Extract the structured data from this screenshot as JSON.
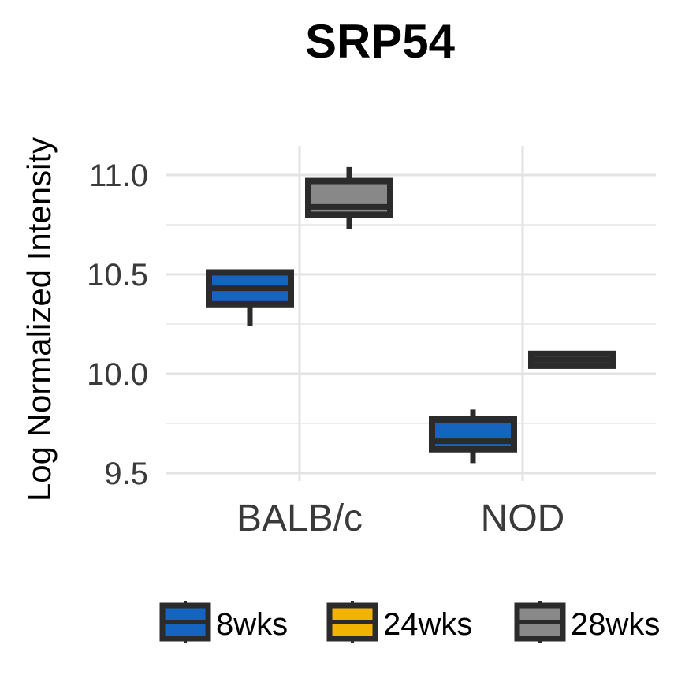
{
  "chart_data": {
    "type": "boxplot",
    "title": "SRP54",
    "xlabel": "",
    "ylabel": "Log Normalized Intensity",
    "categories": [
      "BALB/c",
      "NOD"
    ],
    "ylim": [
      9.45,
      11.2
    ],
    "yticks": [
      "9.5",
      "10.0",
      "10.5",
      "11.0"
    ],
    "ytick_values": [
      9.5,
      10.0,
      10.5,
      11.0
    ],
    "yminor_values": [
      9.75,
      10.25,
      10.75
    ],
    "grid": true,
    "legend_position": "bottom",
    "series": [
      {
        "name": "8wks",
        "color": "#1565c0",
        "boxes": [
          {
            "category": "BALB/c",
            "min": 10.24,
            "q1": 10.35,
            "median": 10.43,
            "q3": 10.51,
            "max": 10.52
          },
          {
            "category": "NOD",
            "min": 9.55,
            "q1": 9.62,
            "median": 9.66,
            "q3": 9.77,
            "max": 9.82
          }
        ]
      },
      {
        "name": "24wks",
        "color": "#f0b400",
        "boxes": []
      },
      {
        "name": "28wks",
        "color": "#888888",
        "boxes": [
          {
            "category": "BALB/c",
            "min": 10.73,
            "q1": 10.8,
            "median": 10.84,
            "q3": 10.97,
            "max": 11.04
          },
          {
            "category": "NOD",
            "min": 10.03,
            "q1": 10.04,
            "median": 10.07,
            "q3": 10.1,
            "max": 10.1
          }
        ]
      }
    ]
  }
}
